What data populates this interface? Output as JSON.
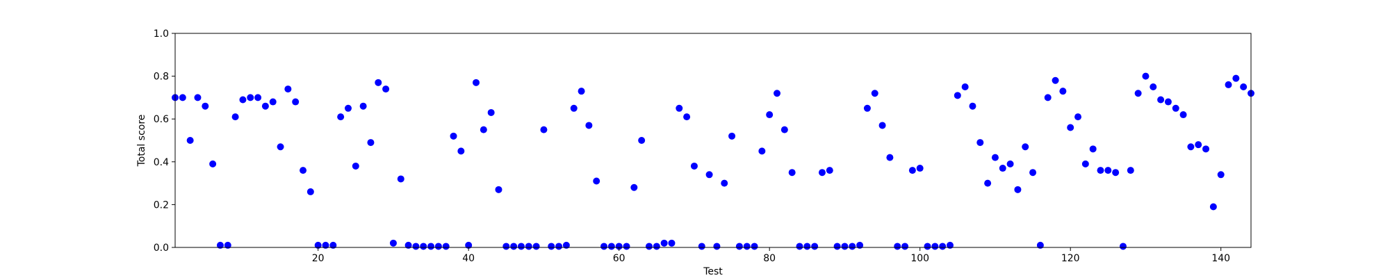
{
  "chart_data": {
    "type": "scatter",
    "xlabel": "Test",
    "ylabel": "Total score",
    "xlim": [
      1,
      144
    ],
    "ylim": [
      0,
      1.0
    ],
    "x_ticks": [
      20,
      40,
      60,
      80,
      100,
      120,
      140
    ],
    "y_ticks": [
      "0.0",
      "0.2",
      "0.4",
      "0.6",
      "0.8",
      "1.0"
    ],
    "grid": false,
    "color": "#0000ff",
    "x": [
      1,
      2,
      3,
      4,
      5,
      6,
      7,
      8,
      9,
      10,
      11,
      12,
      13,
      14,
      15,
      16,
      17,
      18,
      19,
      20,
      21,
      22,
      23,
      24,
      25,
      26,
      27,
      28,
      29,
      30,
      31,
      32,
      33,
      34,
      35,
      36,
      37,
      38,
      39,
      40,
      41,
      42,
      43,
      44,
      45,
      46,
      47,
      48,
      49,
      50,
      51,
      52,
      53,
      54,
      55,
      56,
      57,
      58,
      59,
      60,
      61,
      62,
      63,
      64,
      65,
      66,
      67,
      68,
      69,
      70,
      71,
      72,
      73,
      74,
      75,
      76,
      77,
      78,
      79,
      80,
      81,
      82,
      83,
      84,
      85,
      86,
      87,
      88,
      89,
      90,
      91,
      92,
      93,
      94,
      95,
      96,
      97,
      98,
      99,
      100,
      101,
      102,
      103,
      104,
      105,
      106,
      107,
      108,
      109,
      110,
      111,
      112,
      113,
      114,
      115,
      116,
      117,
      118,
      119,
      120,
      121,
      122,
      123,
      124,
      125,
      126,
      127,
      128,
      129,
      130,
      131,
      132,
      133,
      134,
      135,
      136,
      137,
      138,
      139,
      140,
      141,
      142,
      143,
      144
    ],
    "y": [
      0.7,
      0.7,
      0.5,
      0.7,
      0.66,
      0.39,
      0.01,
      0.01,
      0.61,
      0.69,
      0.7,
      0.7,
      0.66,
      0.68,
      0.47,
      0.74,
      0.68,
      0.36,
      0.26,
      0.01,
      0.01,
      0.01,
      0.61,
      0.65,
      0.38,
      0.66,
      0.49,
      0.77,
      0.74,
      0.02,
      0.32,
      0.01,
      0.005,
      0.005,
      0.005,
      0.005,
      0.005,
      0.52,
      0.45,
      0.01,
      0.77,
      0.55,
      0.63,
      0.27,
      0.005,
      0.005,
      0.005,
      0.005,
      0.005,
      0.55,
      0.005,
      0.005,
      0.01,
      0.65,
      0.73,
      0.57,
      0.31,
      0.005,
      0.005,
      0.005,
      0.005,
      0.28,
      0.5,
      0.005,
      0.005,
      0.02,
      0.02,
      0.65,
      0.61,
      0.38,
      0.005,
      0.34,
      0.005,
      0.3,
      0.52,
      0.005,
      0.005,
      0.005,
      0.45,
      0.62,
      0.72,
      0.55,
      0.35,
      0.005,
      0.005,
      0.005,
      0.35,
      0.36,
      0.005,
      0.005,
      0.005,
      0.01,
      0.65,
      0.72,
      0.57,
      0.42,
      0.005,
      0.005,
      0.36,
      0.37,
      0.005,
      0.005,
      0.005,
      0.01,
      0.71,
      0.75,
      0.66,
      0.49,
      0.3,
      0.42,
      0.37,
      0.39,
      0.27,
      0.47,
      0.35,
      0.01,
      0.7,
      0.78,
      0.73,
      0.56,
      0.61,
      0.39,
      0.46,
      0.36,
      0.36,
      0.35,
      0.005,
      0.36,
      0.72,
      0.8,
      0.75,
      0.69,
      0.68,
      0.65,
      0.62,
      0.47,
      0.48,
      0.46,
      0.19,
      0.34,
      0.76,
      0.79,
      0.75,
      0.72
    ]
  }
}
